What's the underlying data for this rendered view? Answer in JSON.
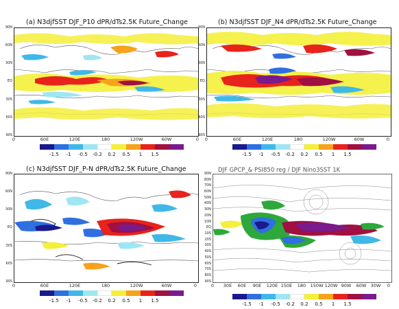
{
  "panels": [
    {
      "title": "(a) N3djfSST DJF_P10 dPR/dTs2.5K Future_Change",
      "lat_labels": [
        "90N",
        "60N",
        "30N",
        "EQ",
        "30S",
        "60S",
        "90S"
      ],
      "lon_labels": [
        "0",
        "60E",
        "120E",
        "180",
        "120W",
        "60W",
        "0"
      ],
      "colorbar": {
        "colors": [
          "#1a1a8c",
          "#2f6fe0",
          "#3fb8e8",
          "#9fe6f2",
          "#ffffff",
          "#f4ef3a",
          "#f7a21b",
          "#e8231b",
          "#a01040",
          "#7a1a8c"
        ],
        "labels": [
          "-1.5",
          "-1",
          "-0.5",
          "-0.2",
          "0.2",
          "0.5",
          "1",
          "1.5"
        ]
      }
    },
    {
      "title": "(b) N3djfSST DJF_N4 dPR/dTs2.5K Future_Change",
      "lat_labels": [
        "90N",
        "60N",
        "30N",
        "EQ",
        "30S",
        "60S",
        "90S"
      ],
      "lon_labels": [
        "0",
        "60E",
        "120E",
        "180",
        "120W",
        "60W",
        "0"
      ],
      "colorbar": {
        "colors": [
          "#1a1a8c",
          "#2f6fe0",
          "#3fb8e8",
          "#9fe6f2",
          "#ffffff",
          "#f4ef3a",
          "#f7a21b",
          "#e8231b",
          "#a01040",
          "#7a1a8c"
        ],
        "labels": [
          "-1.5",
          "-1",
          "-0.5",
          "-0.2",
          "0.2",
          "0.5",
          "1",
          "1.5"
        ]
      }
    },
    {
      "title": "(c) N3djfSST DJF_P-N dPR/dTs2.5K Future_Change",
      "lat_labels": [
        "90N",
        "60N",
        "30N",
        "EQ",
        "30S",
        "60S",
        "90S"
      ],
      "lon_labels": [
        "0",
        "60E",
        "120E",
        "180",
        "120W",
        "60W",
        "0"
      ],
      "colorbar": {
        "colors": [
          "#1a1a8c",
          "#2f6fe0",
          "#3fb8e8",
          "#9fe6f2",
          "#ffffff",
          "#f4ef3a",
          "#f7a21b",
          "#e8231b",
          "#a01040",
          "#7a1a8c"
        ],
        "labels": [
          "-1.5",
          "-1",
          "-0.5",
          "-0.2",
          "0.2",
          "0.5",
          "1",
          "1.5"
        ]
      }
    },
    {
      "title": "DJF GPCP_& PSI850 reg / DJF Nino3SST 1K",
      "lat_labels": [
        "90N",
        "80N",
        "70N",
        "60N",
        "50N",
        "40N",
        "30N",
        "20N",
        "10N",
        "EQ",
        "10S",
        "20S",
        "30S",
        "40S",
        "50S",
        "60S",
        "70S",
        "80S",
        "90S"
      ],
      "lon_labels": [
        "0",
        "30E",
        "60E",
        "90E",
        "120E",
        "150E",
        "180",
        "150W",
        "120W",
        "90W",
        "60W",
        "30W",
        "0"
      ],
      "colorbar": {
        "colors": [
          "#1a1a8c",
          "#2f6fe0",
          "#3fb8e8",
          "#9fe6f2",
          "#ffffff",
          "#f4ef3a",
          "#f7a21b",
          "#e8231b",
          "#a01040",
          "#7a1a8c"
        ],
        "labels": [
          "-1.5",
          "-1",
          "-0.5",
          "-0.2",
          "0.2",
          "0.5",
          "1",
          "1.5"
        ]
      }
    }
  ]
}
